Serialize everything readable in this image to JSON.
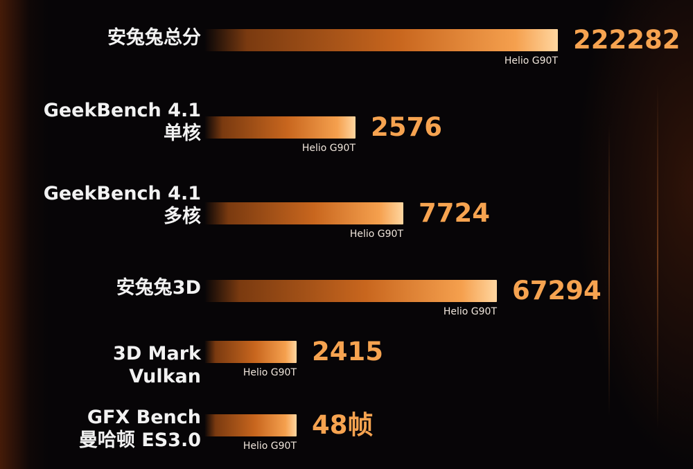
{
  "chart_data": {
    "type": "bar",
    "orientation": "horizontal",
    "title": "",
    "xlabel": "",
    "ylabel": "",
    "grid": false,
    "series": [
      {
        "values": [
          222282,
          2576,
          7724,
          67294,
          2415,
          48
        ]
      }
    ],
    "categories": [
      {
        "lines": [
          "安兔兔总分"
        ],
        "value_label": "222282",
        "chip": "Helio G90T",
        "value": 222282
      },
      {
        "lines": [
          "GeekBench 4.1",
          "单核"
        ],
        "value_label": "2576",
        "chip": "Helio G90T",
        "value": 2576
      },
      {
        "lines": [
          "GeekBench 4.1",
          "多核"
        ],
        "value_label": "7724",
        "chip": "Helio G90T",
        "value": 7724
      },
      {
        "lines": [
          "安兔兔3D"
        ],
        "value_label": "67294",
        "chip": "Helio G90T",
        "value": 67294
      },
      {
        "lines": [
          "3D Mark",
          "Vulkan"
        ],
        "value_label": "2415",
        "chip": "Helio G90T",
        "value": 2415
      },
      {
        "lines": [
          "GFX Bench",
          "曼哈顿 ES3.0"
        ],
        "value_label": "48帧",
        "chip": "Helio G90T",
        "value": 48
      }
    ],
    "colors": {
      "bar_start": "#7a3a10",
      "bar_mid": "#c8661e",
      "bar_end": "#ffd6a0",
      "value_text": "#f6a350",
      "label_text": "#f2f2f2"
    }
  }
}
